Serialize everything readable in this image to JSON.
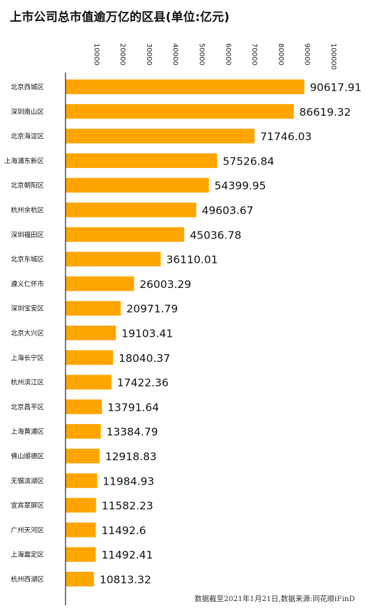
{
  "title": "上市公司总市值逾万亿的区县(单位:亿元)",
  "source": "数据截至2021年1月21日,数据来源:同花顺iFinD",
  "colors": {
    "bar": "#FFA500",
    "axis": "#222222",
    "text": "#111111"
  },
  "chart_data": {
    "type": "bar",
    "orientation": "horizontal",
    "title": "上市公司总市值逾万亿的区县(单位:亿元)",
    "xlabel": "",
    "ylabel": "",
    "xlim": [
      0,
      100000
    ],
    "xticks": [
      "10000",
      "20000",
      "30000",
      "40000",
      "50000",
      "60000",
      "70000",
      "80000",
      "90000",
      "100000"
    ],
    "grid": false,
    "legend": "none",
    "categories": [
      "北京西城区",
      "深圳南山区",
      "北京海淀区",
      "上海浦东新区",
      "北京朝阳区",
      "杭州余杭区",
      "深圳福田区",
      "北京东城区",
      "遵义仁怀市",
      "深圳宝安区",
      "北京大兴区",
      "上海长宁区",
      "杭州滨江区",
      "北京昌平区",
      "上海黄浦区",
      "佛山顺德区",
      "无锡滨湖区",
      "宜宾翠屏区",
      "广州天河区",
      "上海嘉定区",
      "杭州西湖区"
    ],
    "values": [
      90617.91,
      86619.32,
      71746.03,
      57526.84,
      54399.95,
      49603.67,
      45036.78,
      36110.01,
      26003.29,
      20971.79,
      19103.41,
      18040.37,
      17422.36,
      13791.64,
      13384.79,
      12918.83,
      11984.93,
      11582.23,
      11492.6,
      11492.41,
      10813.32
    ],
    "value_labels": [
      "90617.91",
      "86619.32",
      "71746.03",
      "57526.84",
      "54399.95",
      "49603.67",
      "45036.78",
      "36110.01",
      "26003.29",
      "20971.79",
      "19103.41",
      "18040.37",
      "17422.36",
      "13791.64",
      "13384.79",
      "12918.83",
      "11984.93",
      "11582.23",
      "11492.6",
      "11492.41",
      "10813.32"
    ]
  }
}
